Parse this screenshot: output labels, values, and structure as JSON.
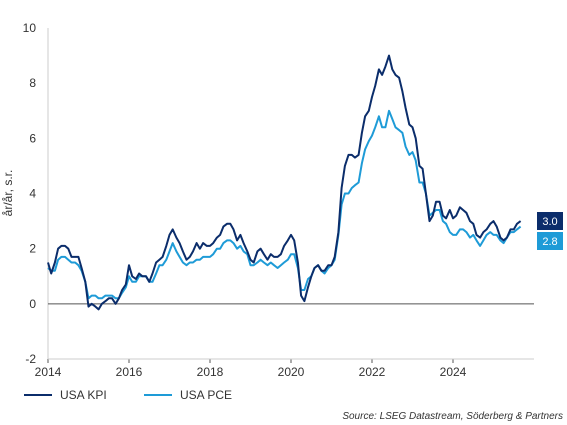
{
  "chart_data": {
    "type": "line",
    "ylabel": "år/år, s.r.",
    "ylim": [
      -2,
      10
    ],
    "yticks": [
      -2,
      0,
      2,
      4,
      6,
      8,
      10
    ],
    "xlim": [
      2014.0,
      2026.0
    ],
    "xticks": [
      2014,
      2016,
      2018,
      2020,
      2022,
      2024
    ],
    "grid": false,
    "legend_position": "bottom-left",
    "source": "Source: LSEG Datastream, Söderberg & Partners",
    "series": [
      {
        "name": "USA KPI",
        "color": "#0b2d6b",
        "end_label": "3.0",
        "points": [
          [
            2014.0,
            1.5
          ],
          [
            2014.08,
            1.1
          ],
          [
            2014.17,
            1.5
          ],
          [
            2014.25,
            2.0
          ],
          [
            2014.33,
            2.1
          ],
          [
            2014.42,
            2.1
          ],
          [
            2014.5,
            2.0
          ],
          [
            2014.58,
            1.7
          ],
          [
            2014.67,
            1.7
          ],
          [
            2014.75,
            1.7
          ],
          [
            2014.83,
            1.3
          ],
          [
            2014.92,
            0.8
          ],
          [
            2015.0,
            -0.1
          ],
          [
            2015.08,
            0.0
          ],
          [
            2015.17,
            -0.1
          ],
          [
            2015.25,
            -0.2
          ],
          [
            2015.33,
            0.0
          ],
          [
            2015.42,
            0.1
          ],
          [
            2015.5,
            0.2
          ],
          [
            2015.58,
            0.2
          ],
          [
            2015.67,
            0.0
          ],
          [
            2015.75,
            0.2
          ],
          [
            2015.83,
            0.5
          ],
          [
            2015.92,
            0.7
          ],
          [
            2016.0,
            1.4
          ],
          [
            2016.08,
            1.0
          ],
          [
            2016.17,
            0.9
          ],
          [
            2016.25,
            1.1
          ],
          [
            2016.33,
            1.0
          ],
          [
            2016.42,
            1.0
          ],
          [
            2016.5,
            0.8
          ],
          [
            2016.58,
            1.1
          ],
          [
            2016.67,
            1.5
          ],
          [
            2016.75,
            1.6
          ],
          [
            2016.83,
            1.7
          ],
          [
            2016.92,
            2.1
          ],
          [
            2017.0,
            2.5
          ],
          [
            2017.08,
            2.7
          ],
          [
            2017.17,
            2.4
          ],
          [
            2017.25,
            2.2
          ],
          [
            2017.33,
            1.9
          ],
          [
            2017.42,
            1.6
          ],
          [
            2017.5,
            1.7
          ],
          [
            2017.58,
            1.9
          ],
          [
            2017.67,
            2.2
          ],
          [
            2017.75,
            2.0
          ],
          [
            2017.83,
            2.2
          ],
          [
            2017.92,
            2.1
          ],
          [
            2018.0,
            2.1
          ],
          [
            2018.08,
            2.2
          ],
          [
            2018.17,
            2.4
          ],
          [
            2018.25,
            2.5
          ],
          [
            2018.33,
            2.8
          ],
          [
            2018.42,
            2.9
          ],
          [
            2018.5,
            2.9
          ],
          [
            2018.58,
            2.7
          ],
          [
            2018.67,
            2.3
          ],
          [
            2018.75,
            2.5
          ],
          [
            2018.83,
            2.2
          ],
          [
            2018.92,
            1.9
          ],
          [
            2019.0,
            1.6
          ],
          [
            2019.08,
            1.5
          ],
          [
            2019.17,
            1.9
          ],
          [
            2019.25,
            2.0
          ],
          [
            2019.33,
            1.8
          ],
          [
            2019.42,
            1.6
          ],
          [
            2019.5,
            1.8
          ],
          [
            2019.58,
            1.7
          ],
          [
            2019.67,
            1.7
          ],
          [
            2019.75,
            1.8
          ],
          [
            2019.83,
            2.1
          ],
          [
            2019.92,
            2.3
          ],
          [
            2020.0,
            2.5
          ],
          [
            2020.08,
            2.3
          ],
          [
            2020.17,
            1.5
          ],
          [
            2020.25,
            0.3
          ],
          [
            2020.33,
            0.1
          ],
          [
            2020.42,
            0.6
          ],
          [
            2020.5,
            1.0
          ],
          [
            2020.58,
            1.3
          ],
          [
            2020.67,
            1.4
          ],
          [
            2020.75,
            1.2
          ],
          [
            2020.83,
            1.2
          ],
          [
            2020.92,
            1.4
          ],
          [
            2021.0,
            1.4
          ],
          [
            2021.08,
            1.7
          ],
          [
            2021.17,
            2.6
          ],
          [
            2021.25,
            4.2
          ],
          [
            2021.33,
            5.0
          ],
          [
            2021.42,
            5.4
          ],
          [
            2021.5,
            5.4
          ],
          [
            2021.58,
            5.3
          ],
          [
            2021.67,
            5.4
          ],
          [
            2021.75,
            6.2
          ],
          [
            2021.83,
            6.8
          ],
          [
            2021.92,
            7.0
          ],
          [
            2022.0,
            7.5
          ],
          [
            2022.08,
            7.9
          ],
          [
            2022.17,
            8.5
          ],
          [
            2022.25,
            8.3
          ],
          [
            2022.33,
            8.6
          ],
          [
            2022.42,
            9.0
          ],
          [
            2022.5,
            8.5
          ],
          [
            2022.58,
            8.3
          ],
          [
            2022.67,
            8.2
          ],
          [
            2022.75,
            7.7
          ],
          [
            2022.83,
            7.1
          ],
          [
            2022.92,
            6.5
          ],
          [
            2023.0,
            6.4
          ],
          [
            2023.08,
            6.0
          ],
          [
            2023.17,
            5.0
          ],
          [
            2023.25,
            4.9
          ],
          [
            2023.33,
            4.0
          ],
          [
            2023.42,
            3.0
          ],
          [
            2023.5,
            3.2
          ],
          [
            2023.58,
            3.7
          ],
          [
            2023.67,
            3.7
          ],
          [
            2023.75,
            3.2
          ],
          [
            2023.83,
            3.1
          ],
          [
            2023.92,
            3.4
          ],
          [
            2024.0,
            3.1
          ],
          [
            2024.08,
            3.2
          ],
          [
            2024.17,
            3.5
          ],
          [
            2024.25,
            3.4
          ],
          [
            2024.33,
            3.3
          ],
          [
            2024.42,
            3.0
          ],
          [
            2024.5,
            2.9
          ],
          [
            2024.58,
            2.5
          ],
          [
            2024.67,
            2.4
          ],
          [
            2024.75,
            2.6
          ],
          [
            2024.83,
            2.7
          ],
          [
            2024.92,
            2.9
          ],
          [
            2025.0,
            3.0
          ],
          [
            2025.08,
            2.8
          ],
          [
            2025.17,
            2.4
          ],
          [
            2025.25,
            2.3
          ],
          [
            2025.33,
            2.4
          ],
          [
            2025.42,
            2.7
          ],
          [
            2025.5,
            2.7
          ],
          [
            2025.58,
            2.9
          ],
          [
            2025.67,
            3.0
          ]
        ]
      },
      {
        "name": "USA PCE",
        "color": "#1e9bd7",
        "end_label": "2.8",
        "points": [
          [
            2014.0,
            1.3
          ],
          [
            2014.08,
            1.2
          ],
          [
            2014.17,
            1.2
          ],
          [
            2014.25,
            1.6
          ],
          [
            2014.33,
            1.7
          ],
          [
            2014.42,
            1.7
          ],
          [
            2014.5,
            1.6
          ],
          [
            2014.58,
            1.5
          ],
          [
            2014.67,
            1.5
          ],
          [
            2014.75,
            1.4
          ],
          [
            2014.83,
            1.2
          ],
          [
            2014.92,
            0.8
          ],
          [
            2015.0,
            0.2
          ],
          [
            2015.08,
            0.3
          ],
          [
            2015.17,
            0.3
          ],
          [
            2015.25,
            0.2
          ],
          [
            2015.33,
            0.2
          ],
          [
            2015.42,
            0.3
          ],
          [
            2015.5,
            0.3
          ],
          [
            2015.58,
            0.3
          ],
          [
            2015.67,
            0.2
          ],
          [
            2015.75,
            0.2
          ],
          [
            2015.83,
            0.4
          ],
          [
            2015.92,
            0.6
          ],
          [
            2016.0,
            1.0
          ],
          [
            2016.08,
            0.8
          ],
          [
            2016.17,
            0.8
          ],
          [
            2016.25,
            1.0
          ],
          [
            2016.33,
            1.0
          ],
          [
            2016.42,
            1.0
          ],
          [
            2016.5,
            0.8
          ],
          [
            2016.58,
            0.8
          ],
          [
            2016.67,
            1.1
          ],
          [
            2016.75,
            1.4
          ],
          [
            2016.83,
            1.4
          ],
          [
            2016.92,
            1.6
          ],
          [
            2017.0,
            1.9
          ],
          [
            2017.08,
            2.2
          ],
          [
            2017.17,
            1.9
          ],
          [
            2017.25,
            1.7
          ],
          [
            2017.33,
            1.5
          ],
          [
            2017.42,
            1.4
          ],
          [
            2017.5,
            1.5
          ],
          [
            2017.58,
            1.5
          ],
          [
            2017.67,
            1.6
          ],
          [
            2017.75,
            1.6
          ],
          [
            2017.83,
            1.7
          ],
          [
            2017.92,
            1.7
          ],
          [
            2018.0,
            1.7
          ],
          [
            2018.08,
            1.8
          ],
          [
            2018.17,
            2.0
          ],
          [
            2018.25,
            2.0
          ],
          [
            2018.33,
            2.2
          ],
          [
            2018.42,
            2.3
          ],
          [
            2018.5,
            2.3
          ],
          [
            2018.58,
            2.2
          ],
          [
            2018.67,
            2.0
          ],
          [
            2018.75,
            2.1
          ],
          [
            2018.83,
            1.9
          ],
          [
            2018.92,
            1.8
          ],
          [
            2019.0,
            1.4
          ],
          [
            2019.08,
            1.4
          ],
          [
            2019.17,
            1.5
          ],
          [
            2019.25,
            1.6
          ],
          [
            2019.33,
            1.5
          ],
          [
            2019.42,
            1.4
          ],
          [
            2019.5,
            1.5
          ],
          [
            2019.58,
            1.4
          ],
          [
            2019.67,
            1.3
          ],
          [
            2019.75,
            1.4
          ],
          [
            2019.83,
            1.5
          ],
          [
            2019.92,
            1.6
          ],
          [
            2020.0,
            1.8
          ],
          [
            2020.08,
            1.8
          ],
          [
            2020.17,
            1.3
          ],
          [
            2020.25,
            0.5
          ],
          [
            2020.33,
            0.5
          ],
          [
            2020.42,
            0.9
          ],
          [
            2020.5,
            1.0
          ],
          [
            2020.58,
            1.3
          ],
          [
            2020.67,
            1.4
          ],
          [
            2020.75,
            1.2
          ],
          [
            2020.83,
            1.1
          ],
          [
            2020.92,
            1.3
          ],
          [
            2021.0,
            1.4
          ],
          [
            2021.08,
            1.6
          ],
          [
            2021.17,
            2.5
          ],
          [
            2021.25,
            3.6
          ],
          [
            2021.33,
            4.0
          ],
          [
            2021.42,
            4.0
          ],
          [
            2021.5,
            4.2
          ],
          [
            2021.58,
            4.3
          ],
          [
            2021.67,
            4.4
          ],
          [
            2021.75,
            5.1
          ],
          [
            2021.83,
            5.6
          ],
          [
            2021.92,
            5.9
          ],
          [
            2022.0,
            6.1
          ],
          [
            2022.08,
            6.4
          ],
          [
            2022.17,
            6.8
          ],
          [
            2022.25,
            6.4
          ],
          [
            2022.33,
            6.4
          ],
          [
            2022.42,
            7.0
          ],
          [
            2022.5,
            6.7
          ],
          [
            2022.58,
            6.4
          ],
          [
            2022.67,
            6.3
          ],
          [
            2022.75,
            6.2
          ],
          [
            2022.83,
            5.7
          ],
          [
            2022.92,
            5.4
          ],
          [
            2023.0,
            5.5
          ],
          [
            2023.08,
            5.2
          ],
          [
            2023.17,
            4.4
          ],
          [
            2023.25,
            4.4
          ],
          [
            2023.33,
            4.0
          ],
          [
            2023.42,
            3.2
          ],
          [
            2023.5,
            3.3
          ],
          [
            2023.58,
            3.4
          ],
          [
            2023.67,
            3.4
          ],
          [
            2023.75,
            3.0
          ],
          [
            2023.83,
            2.9
          ],
          [
            2023.92,
            2.6
          ],
          [
            2024.0,
            2.5
          ],
          [
            2024.08,
            2.5
          ],
          [
            2024.17,
            2.7
          ],
          [
            2024.25,
            2.7
          ],
          [
            2024.33,
            2.6
          ],
          [
            2024.42,
            2.4
          ],
          [
            2024.5,
            2.5
          ],
          [
            2024.58,
            2.3
          ],
          [
            2024.67,
            2.1
          ],
          [
            2024.75,
            2.3
          ],
          [
            2024.83,
            2.5
          ],
          [
            2024.92,
            2.6
          ],
          [
            2025.0,
            2.5
          ],
          [
            2025.08,
            2.5
          ],
          [
            2025.17,
            2.3
          ],
          [
            2025.25,
            2.2
          ],
          [
            2025.33,
            2.4
          ],
          [
            2025.42,
            2.6
          ],
          [
            2025.5,
            2.6
          ],
          [
            2025.58,
            2.7
          ],
          [
            2025.67,
            2.8
          ]
        ]
      }
    ]
  }
}
